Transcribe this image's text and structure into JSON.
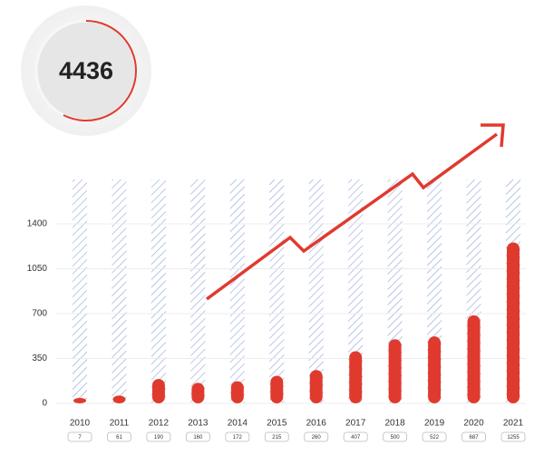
{
  "chart_data": {
    "type": "bar",
    "total": 4436,
    "categories": [
      "2010",
      "2011",
      "2012",
      "2013",
      "2014",
      "2015",
      "2016",
      "2017",
      "2018",
      "2019",
      "2020",
      "2021"
    ],
    "values": [
      7,
      61,
      190,
      160,
      172,
      215,
      260,
      407,
      500,
      522,
      687,
      1255
    ],
    "color": "#e03a2e",
    "ylim": [
      0,
      1400
    ],
    "yticks": [
      0,
      350,
      700,
      1050,
      1400
    ],
    "grid": true
  }
}
